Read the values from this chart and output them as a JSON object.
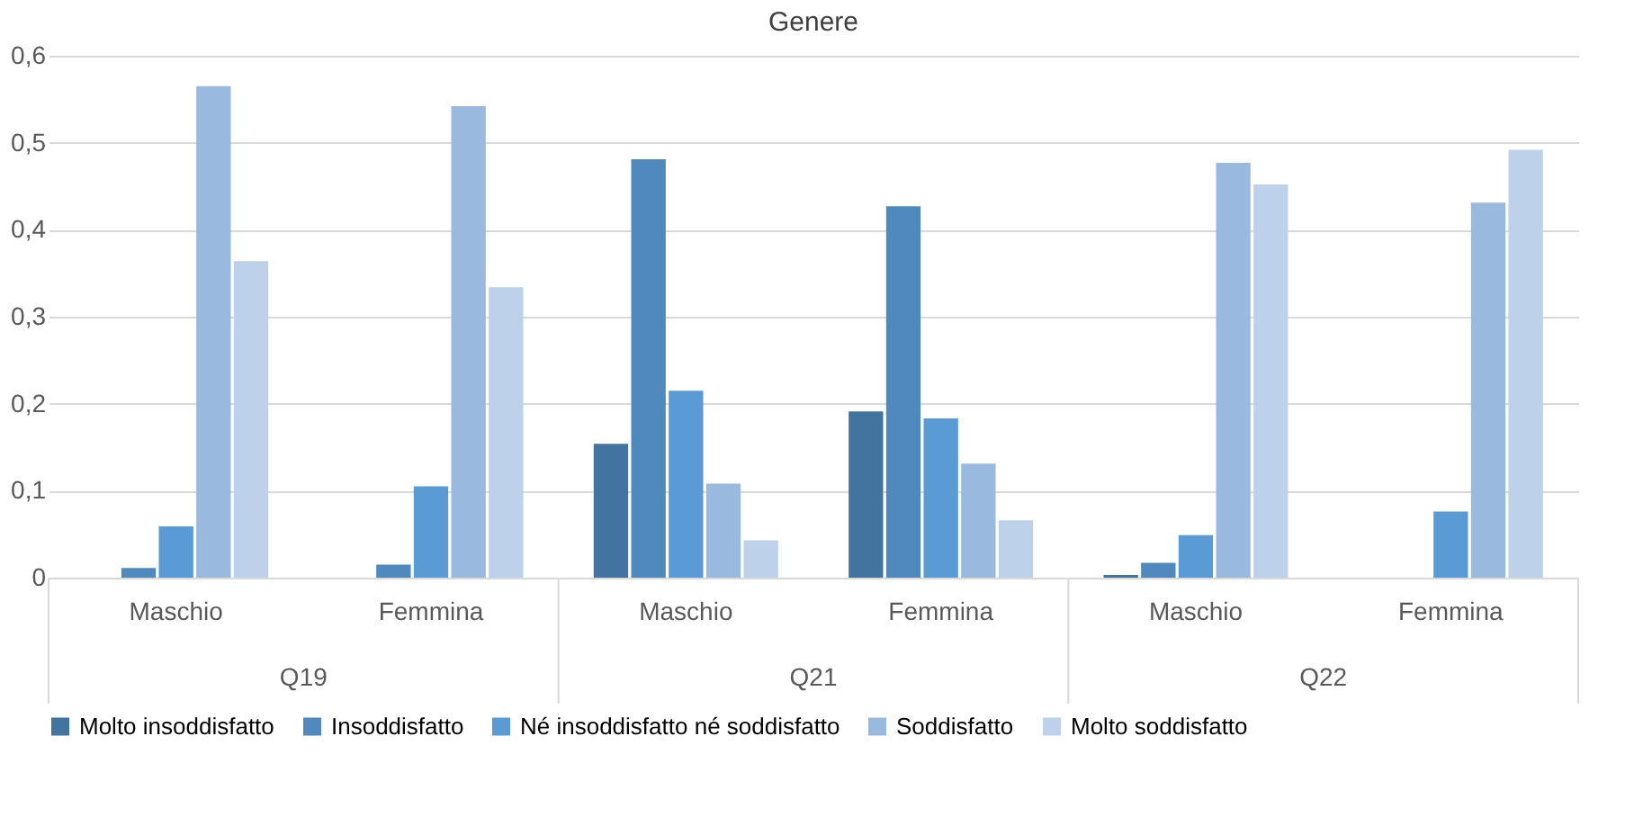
{
  "chart_data": {
    "type": "bar",
    "title": "Genere",
    "categories": [
      "Maschio",
      "Femmina",
      "Maschio",
      "Femmina",
      "Maschio",
      "Femmina"
    ],
    "annotations": [
      "Q19",
      "Q21",
      "Q22"
    ],
    "series": [
      {
        "name": "Molto insoddisfatto",
        "color": "#43739f",
        "values": [
          0,
          0,
          0.154,
          0.191,
          0.003,
          0
        ]
      },
      {
        "name": "Insoddisfatto",
        "color": "#4f89bd",
        "values": [
          0.011,
          0.015,
          0.481,
          0.427,
          0.017,
          0
        ]
      },
      {
        "name": "Né insoddisfatto né soddisfatto",
        "color": "#5b9bd5",
        "values": [
          0.059,
          0.105,
          0.215,
          0.183,
          0.049,
          0.076
        ]
      },
      {
        "name": "Soddisfatto",
        "color": "#9ab9df",
        "values": [
          0.565,
          0.542,
          0.108,
          0.131,
          0.477,
          0.431
        ]
      },
      {
        "name": "Molto soddisfatto",
        "color": "#bdd1ea",
        "values": [
          0.364,
          0.334,
          0.043,
          0.066,
          0.452,
          0.492
        ]
      }
    ],
    "ylim": [
      0,
      0.6
    ],
    "yticks": [
      {
        "value": 0,
        "label": "0"
      },
      {
        "value": 0.1,
        "label": "0,1"
      },
      {
        "value": 0.2,
        "label": "0,2"
      },
      {
        "value": 0.3,
        "label": "0,3"
      },
      {
        "value": 0.4,
        "label": "0,4"
      },
      {
        "value": 0.5,
        "label": "0,5"
      },
      {
        "value": 0.6,
        "label": "0,6"
      }
    ],
    "grid": "y",
    "legend": "bottom"
  }
}
